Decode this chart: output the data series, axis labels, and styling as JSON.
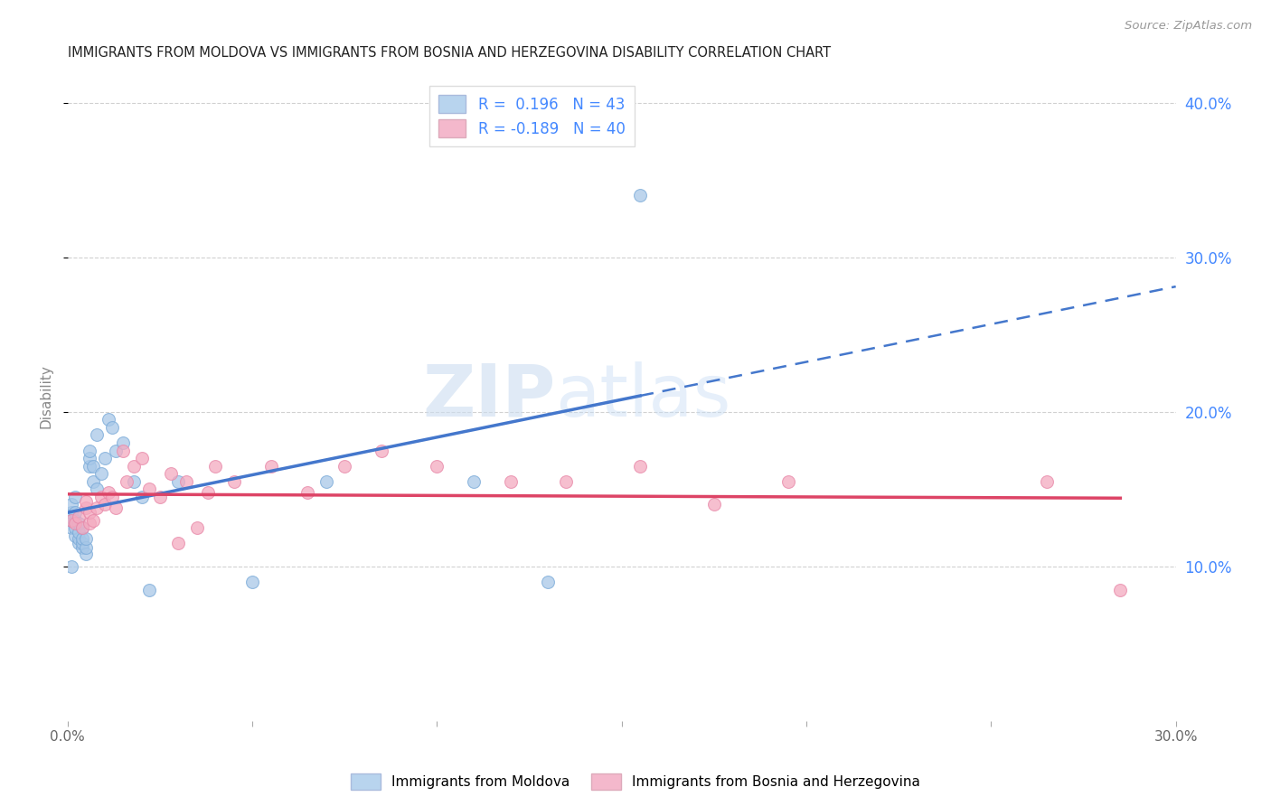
{
  "title": "IMMIGRANTS FROM MOLDOVA VS IMMIGRANTS FROM BOSNIA AND HERZEGOVINA DISABILITY CORRELATION CHART",
  "source": "Source: ZipAtlas.com",
  "ylabel": "Disability",
  "xlim": [
    0.0,
    0.3
  ],
  "ylim": [
    0.0,
    0.42
  ],
  "xticks": [
    0.0,
    0.05,
    0.1,
    0.15,
    0.2,
    0.25,
    0.3
  ],
  "xtick_labels": [
    "0.0%",
    "",
    "",
    "",
    "",
    "",
    "30.0%"
  ],
  "yticks_right": [
    0.1,
    0.2,
    0.3,
    0.4
  ],
  "ytick_labels_right": [
    "10.0%",
    "20.0%",
    "30.0%",
    "40.0%"
  ],
  "legend_series": [
    {
      "label": "R =  0.196   N = 43",
      "color": "#b8d4ee"
    },
    {
      "label": "R = -0.189   N = 40",
      "color": "#f4b8cc"
    }
  ],
  "legend_bottom": [
    {
      "label": "Immigrants from Moldova",
      "color": "#b8d4ee"
    },
    {
      "label": "Immigrants from Bosnia and Herzegovina",
      "color": "#f4b8cc"
    }
  ],
  "moldova_x": [
    0.001,
    0.001,
    0.001,
    0.001,
    0.001,
    0.002,
    0.002,
    0.002,
    0.002,
    0.002,
    0.003,
    0.003,
    0.003,
    0.003,
    0.004,
    0.004,
    0.004,
    0.004,
    0.005,
    0.005,
    0.005,
    0.006,
    0.006,
    0.006,
    0.007,
    0.007,
    0.008,
    0.008,
    0.009,
    0.01,
    0.011,
    0.012,
    0.013,
    0.015,
    0.018,
    0.02,
    0.022,
    0.03,
    0.05,
    0.07,
    0.11,
    0.13,
    0.155
  ],
  "moldova_y": [
    0.125,
    0.13,
    0.135,
    0.14,
    0.1,
    0.12,
    0.125,
    0.13,
    0.135,
    0.145,
    0.115,
    0.118,
    0.122,
    0.128,
    0.112,
    0.115,
    0.118,
    0.125,
    0.108,
    0.112,
    0.118,
    0.165,
    0.17,
    0.175,
    0.155,
    0.165,
    0.15,
    0.185,
    0.16,
    0.17,
    0.195,
    0.19,
    0.175,
    0.18,
    0.155,
    0.145,
    0.085,
    0.155,
    0.09,
    0.155,
    0.155,
    0.09,
    0.34
  ],
  "bosnia_x": [
    0.001,
    0.002,
    0.003,
    0.004,
    0.005,
    0.005,
    0.006,
    0.006,
    0.007,
    0.008,
    0.009,
    0.01,
    0.011,
    0.012,
    0.013,
    0.015,
    0.016,
    0.018,
    0.02,
    0.022,
    0.025,
    0.028,
    0.03,
    0.032,
    0.035,
    0.038,
    0.04,
    0.045,
    0.055,
    0.065,
    0.075,
    0.085,
    0.1,
    0.12,
    0.135,
    0.155,
    0.175,
    0.195,
    0.265,
    0.285
  ],
  "bosnia_y": [
    0.13,
    0.128,
    0.132,
    0.125,
    0.138,
    0.142,
    0.128,
    0.135,
    0.13,
    0.138,
    0.145,
    0.14,
    0.148,
    0.145,
    0.138,
    0.175,
    0.155,
    0.165,
    0.17,
    0.15,
    0.145,
    0.16,
    0.115,
    0.155,
    0.125,
    0.148,
    0.165,
    0.155,
    0.165,
    0.148,
    0.165,
    0.175,
    0.165,
    0.155,
    0.155,
    0.165,
    0.14,
    0.155,
    0.155,
    0.085
  ],
  "scatter_size": 100,
  "moldova_color": "#a8c8e8",
  "moldova_edge_color": "#7aaad8",
  "bosnia_color": "#f4aac0",
  "bosnia_edge_color": "#e888a8",
  "trend_moldova_color": "#4477cc",
  "trend_bosnia_color": "#dd4466",
  "trend_moldova_solid_end": 0.155,
  "trend_moldova_dash_start": 0.155,
  "background_color": "#ffffff",
  "grid_color": "#cccccc",
  "title_color": "#222222",
  "axis_label_color": "#888888",
  "right_axis_color": "#4488ff",
  "watermark_zip": "ZIP",
  "watermark_atlas": "atlas",
  "watermark_color": "#ccddf0",
  "watermark_alpha": 0.6
}
